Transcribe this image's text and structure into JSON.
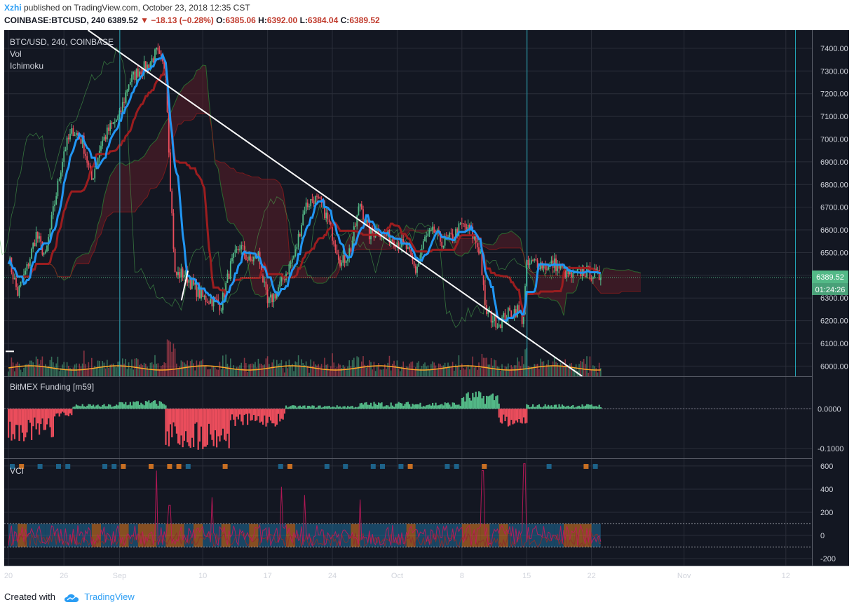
{
  "header": {
    "author": "Xzhi",
    "published": "published on TradingView.com, October 23, 2018 12:35 CST",
    "symbol": "COINBASE:BTCUSD, 240",
    "last": "6389.52",
    "change": "−18.13 (−0.28%)",
    "o_label": "O:",
    "o": "6385.06",
    "h_label": "H:",
    "h": "6392.00",
    "l_label": "L:",
    "l": "6384.04",
    "c_label": "C:",
    "c": "6389.52"
  },
  "panes": {
    "main": {
      "title": "BTC/USD, 240, COINBASE",
      "study1": "Vol",
      "study2": "Ichimoku"
    },
    "funding": {
      "title": "BitMEX Funding [m59]"
    },
    "vci": {
      "title": "VCI"
    }
  },
  "badges": {
    "price": "6389.52",
    "countdown": "01:24:26"
  },
  "footer": {
    "created_with": "Created with",
    "brand": "TradingView"
  },
  "colors": {
    "background": "#131722",
    "up": "#53b987",
    "down": "#eb4d5c",
    "kijun": "#9b1d1f",
    "tenkan": "#2196f3",
    "trendline": "#ffffff",
    "vol_ma": "#ffa726",
    "vci_orange": "#e67e22",
    "vci_blue": "#1f6e9a"
  },
  "chart_data": [
    {
      "type": "candlestick",
      "pane": "main",
      "yaxis_ticks": [
        "7400.00",
        "7300.00",
        "7200.00",
        "7100.00",
        "7000.00",
        "6900.00",
        "6800.00",
        "6700.00",
        "6600.00",
        "6500.00",
        "6400.00",
        "6300.00",
        "6200.00",
        "6100.00",
        "6000.00"
      ],
      "ylim": [
        5955,
        7480
      ],
      "xaxis_ticks": [
        {
          "label": "20",
          "day": 0
        },
        {
          "label": "26",
          "day": 6
        },
        {
          "label": "Sep",
          "day": 12
        },
        {
          "label": "10",
          "day": 21
        },
        {
          "label": "17",
          "day": 28
        },
        {
          "label": "24",
          "day": 35
        },
        {
          "label": "Oct",
          "day": 42
        },
        {
          "label": "8",
          "day": 49
        },
        {
          "label": "15",
          "day": 56
        },
        {
          "label": "22",
          "day": 63
        },
        {
          "label": "Nov",
          "day": 73
        },
        {
          "label": "12",
          "day": 84
        }
      ],
      "price_path": [
        {
          "day": 0,
          "price": 6480
        },
        {
          "day": 1,
          "price": 6320
        },
        {
          "day": 2,
          "price": 6430
        },
        {
          "day": 3,
          "price": 6580
        },
        {
          "day": 4,
          "price": 6480
        },
        {
          "day": 5,
          "price": 6720
        },
        {
          "day": 6,
          "price": 6950
        },
        {
          "day": 7,
          "price": 7040
        },
        {
          "day": 8,
          "price": 6990
        },
        {
          "day": 9,
          "price": 6820
        },
        {
          "day": 10,
          "price": 6980
        },
        {
          "day": 11,
          "price": 7050
        },
        {
          "day": 12,
          "price": 7100
        },
        {
          "day": 13,
          "price": 7250
        },
        {
          "day": 14,
          "price": 7300
        },
        {
          "day": 15,
          "price": 7320
        },
        {
          "day": 16,
          "price": 7380
        },
        {
          "day": 17,
          "price": 7300
        },
        {
          "day": 17.5,
          "price": 6800
        },
        {
          "day": 18,
          "price": 6400
        },
        {
          "day": 19,
          "price": 6410
        },
        {
          "day": 20,
          "price": 6350
        },
        {
          "day": 21,
          "price": 6300
        },
        {
          "day": 22,
          "price": 6290
        },
        {
          "day": 23,
          "price": 6270
        },
        {
          "day": 24,
          "price": 6440
        },
        {
          "day": 25,
          "price": 6530
        },
        {
          "day": 26,
          "price": 6460
        },
        {
          "day": 27,
          "price": 6490
        },
        {
          "day": 28,
          "price": 6270
        },
        {
          "day": 29,
          "price": 6330
        },
        {
          "day": 30,
          "price": 6410
        },
        {
          "day": 31,
          "price": 6500
        },
        {
          "day": 32,
          "price": 6700
        },
        {
          "day": 33,
          "price": 6740
        },
        {
          "day": 34,
          "price": 6700
        },
        {
          "day": 35,
          "price": 6580
        },
        {
          "day": 36,
          "price": 6450
        },
        {
          "day": 37,
          "price": 6520
        },
        {
          "day": 38,
          "price": 6720
        },
        {
          "day": 39,
          "price": 6580
        },
        {
          "day": 40,
          "price": 6600
        },
        {
          "day": 41,
          "price": 6570
        },
        {
          "day": 42,
          "price": 6550
        },
        {
          "day": 43,
          "price": 6520
        },
        {
          "day": 44,
          "price": 6420
        },
        {
          "day": 45,
          "price": 6560
        },
        {
          "day": 46,
          "price": 6590
        },
        {
          "day": 47,
          "price": 6540
        },
        {
          "day": 48,
          "price": 6570
        },
        {
          "day": 49,
          "price": 6620
        },
        {
          "day": 50,
          "price": 6590
        },
        {
          "day": 51,
          "price": 6500
        },
        {
          "day": 51.5,
          "price": 6250
        },
        {
          "day": 52,
          "price": 6220
        },
        {
          "day": 53,
          "price": 6190
        },
        {
          "day": 54,
          "price": 6230
        },
        {
          "day": 55,
          "price": 6250
        },
        {
          "day": 55.6,
          "price": 6200
        },
        {
          "day": 56,
          "price": 6440
        },
        {
          "day": 57,
          "price": 6460
        },
        {
          "day": 58,
          "price": 6440
        },
        {
          "day": 59,
          "price": 6450
        },
        {
          "day": 60,
          "price": 6420
        },
        {
          "day": 61,
          "price": 6390
        },
        {
          "day": 62,
          "price": 6420
        },
        {
          "day": 63,
          "price": 6410
        },
        {
          "day": 64,
          "price": 6389.52
        }
      ],
      "trendline": [
        {
          "day": 8.6,
          "price": 7480
        },
        {
          "day": 62,
          "price": 5955
        }
      ]
    },
    {
      "type": "bar",
      "pane": "funding",
      "title": "BitMEX Funding [m59]",
      "yaxis_ticks": [
        "0.0000",
        "-0.1000"
      ],
      "ylim": [
        -0.125,
        0.08
      ],
      "segments": [
        {
          "from_day": 0,
          "to_day": 5,
          "value": -0.055
        },
        {
          "from_day": 5,
          "to_day": 7,
          "value": -0.015
        },
        {
          "from_day": 7,
          "to_day": 12,
          "value": 0.008
        },
        {
          "from_day": 12,
          "to_day": 17,
          "value": 0.015
        },
        {
          "from_day": 17,
          "to_day": 24,
          "value": -0.07
        },
        {
          "from_day": 24,
          "to_day": 30,
          "value": -0.03
        },
        {
          "from_day": 30,
          "to_day": 38,
          "value": 0.006
        },
        {
          "from_day": 38,
          "to_day": 49,
          "value": 0.012
        },
        {
          "from_day": 49,
          "to_day": 53,
          "value": 0.03
        },
        {
          "from_day": 53,
          "to_day": 56,
          "value": -0.03
        },
        {
          "from_day": 56,
          "to_day": 64,
          "value": 0.008
        }
      ]
    },
    {
      "type": "line",
      "pane": "vci",
      "title": "VCI",
      "yaxis_ticks": [
        "600",
        "400",
        "200",
        "0",
        "-200"
      ],
      "ylim": [
        -260,
        660
      ],
      "bands": [
        100,
        -100
      ],
      "spikes": [
        {
          "day": 16,
          "value": 560
        },
        {
          "day": 17.4,
          "value": 260
        },
        {
          "day": 22,
          "value": 330
        },
        {
          "day": 29.5,
          "value": 420
        },
        {
          "day": 32,
          "value": 350
        },
        {
          "day": 38,
          "value": 310
        },
        {
          "day": 51.2,
          "value": 560
        },
        {
          "day": 55.7,
          "value": 620
        }
      ]
    }
  ]
}
